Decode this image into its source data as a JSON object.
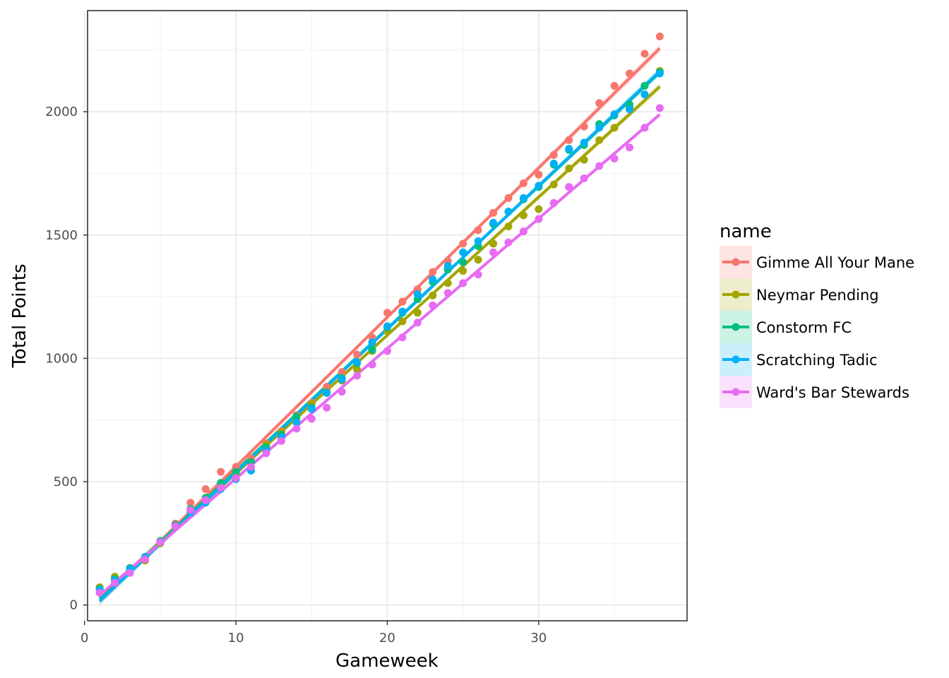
{
  "chart_data": {
    "type": "scatter",
    "xlabel": "Gameweek",
    "ylabel": "Total Points",
    "xlim": [
      0.2,
      39.8
    ],
    "ylim": [
      -64,
      2410
    ],
    "x_ticks": [
      0,
      10,
      20,
      30
    ],
    "y_ticks": [
      0,
      500,
      1000,
      1500,
      2000
    ],
    "x_tick_labels": [
      "0",
      "10",
      "20",
      "30"
    ],
    "y_tick_labels": [
      "0",
      "500",
      "1000",
      "1500",
      "2000"
    ],
    "grid": true,
    "smooth": "linear fit with confidence band",
    "legend": {
      "title": "name",
      "position": "right"
    },
    "x": [
      1,
      2,
      3,
      4,
      5,
      6,
      7,
      8,
      9,
      10,
      11,
      12,
      13,
      14,
      15,
      16,
      17,
      18,
      19,
      20,
      21,
      22,
      23,
      24,
      25,
      26,
      27,
      28,
      29,
      30,
      31,
      32,
      33,
      34,
      35,
      36,
      37,
      38
    ],
    "series": [
      {
        "name": "Gimme All Your Mane",
        "color": "#F8766D",
        "values": [
          70,
          110,
          150,
          195,
          255,
          330,
          415,
          470,
          540,
          560,
          595,
          655,
          705,
          770,
          820,
          885,
          945,
          1015,
          1085,
          1185,
          1230,
          1280,
          1350,
          1395,
          1465,
          1520,
          1590,
          1650,
          1710,
          1745,
          1825,
          1885,
          1940,
          2035,
          2105,
          2155,
          2235,
          2305
        ]
      },
      {
        "name": "Neymar Pending",
        "color": "#A3A500",
        "values": [
          72,
          115,
          145,
          180,
          250,
          320,
          380,
          430,
          485,
          530,
          580,
          650,
          700,
          755,
          815,
          865,
          910,
          955,
          1030,
          1110,
          1150,
          1185,
          1255,
          1305,
          1355,
          1400,
          1465,
          1535,
          1580,
          1605,
          1705,
          1770,
          1805,
          1885,
          1935,
          2020,
          2105,
          2165
        ]
      },
      {
        "name": "Constorm FC",
        "color": "#00BF7D",
        "values": [
          65,
          105,
          150,
          190,
          260,
          325,
          390,
          435,
          495,
          540,
          580,
          640,
          690,
          765,
          800,
          860,
          920,
          980,
          1035,
          1125,
          1185,
          1240,
          1310,
          1360,
          1390,
          1455,
          1545,
          1595,
          1645,
          1695,
          1785,
          1845,
          1865,
          1950,
          1985,
          2030,
          2105,
          2160
        ]
      },
      {
        "name": "Scratching Tadic",
        "color": "#00B0F6",
        "values": [
          62,
          100,
          145,
          195,
          255,
          320,
          375,
          415,
          470,
          510,
          545,
          625,
          680,
          740,
          795,
          860,
          915,
          985,
          1065,
          1130,
          1190,
          1260,
          1320,
          1375,
          1430,
          1475,
          1550,
          1595,
          1650,
          1700,
          1790,
          1850,
          1875,
          1935,
          1990,
          2010,
          2070,
          2155
        ]
      },
      {
        "name": "Ward's Bar Stewards",
        "color": "#E76BF3",
        "values": [
          50,
          90,
          130,
          185,
          255,
          320,
          385,
          425,
          475,
          515,
          560,
          615,
          665,
          715,
          755,
          800,
          865,
          930,
          975,
          1030,
          1085,
          1145,
          1215,
          1265,
          1305,
          1340,
          1430,
          1470,
          1515,
          1565,
          1630,
          1695,
          1730,
          1780,
          1810,
          1855,
          1935,
          2015
        ]
      }
    ]
  }
}
